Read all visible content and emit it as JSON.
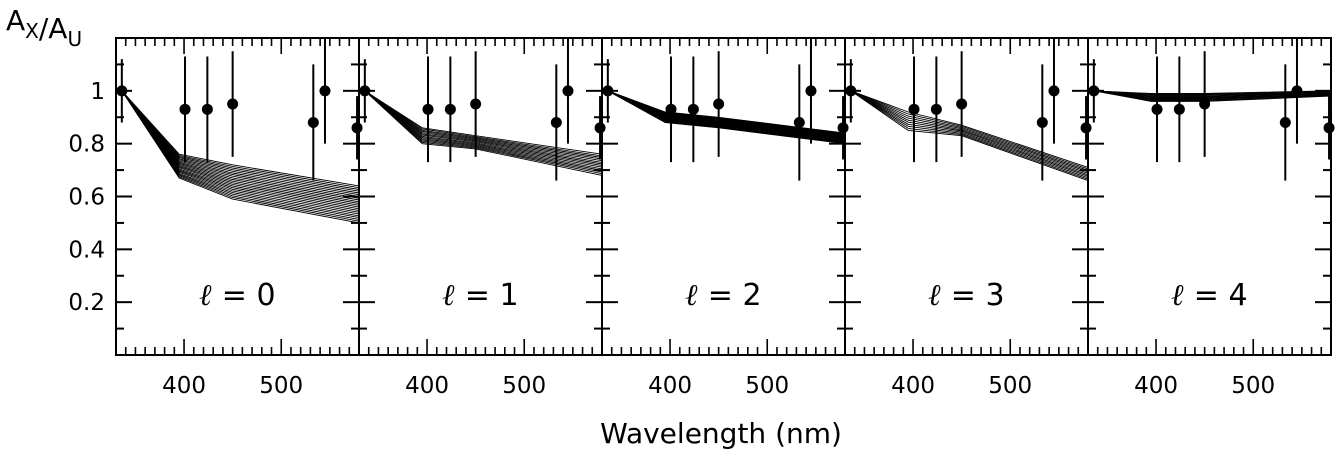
{
  "chart_data": {
    "type": "line",
    "ylabel": "A_X/A_U",
    "xlabel": "Wavelength (nm)",
    "ylim": [
      0,
      1.2
    ],
    "xlim": [
      330,
      580
    ],
    "yticks": [
      0.2,
      0.4,
      0.6,
      0.8,
      1
    ],
    "yticklabels": [
      "0.2",
      "0.4",
      "0.6",
      "0.8",
      "1"
    ],
    "xticks": [
      400,
      500
    ],
    "xticklabels": [
      "400",
      "500"
    ],
    "grid": false,
    "observations": {
      "wavelength_nm": [
        336,
        401,
        424,
        450,
        533,
        545,
        578
      ],
      "ratio": [
        1.0,
        0.93,
        0.93,
        0.95,
        0.88,
        1.0,
        0.86
      ],
      "error": [
        0.12,
        0.2,
        0.2,
        0.2,
        0.22,
        0.2,
        0.12
      ]
    },
    "panels": [
      {
        "label": "ℓ = 0",
        "degree": "0",
        "model_wavelength_nm": [
          336,
          395,
          450,
          580
        ],
        "model_curves": {
          "lower": [
            1.0,
            0.67,
            0.59,
            0.5
          ],
          "upper": [
            1.0,
            0.76,
            0.72,
            0.64
          ],
          "count": 22
        }
      },
      {
        "label": "ℓ = 1",
        "degree": "1",
        "model_wavelength_nm": [
          336,
          395,
          450,
          580
        ],
        "model_curves": {
          "lower": [
            1.0,
            0.8,
            0.78,
            0.68
          ],
          "upper": [
            1.0,
            0.86,
            0.83,
            0.76
          ],
          "count": 14
        }
      },
      {
        "label": "ℓ = 2",
        "degree": "2",
        "model_wavelength_nm": [
          336,
          395,
          450,
          580
        ],
        "model_curves": {
          "lower": [
            1.0,
            0.88,
            0.86,
            0.8
          ],
          "upper": [
            1.0,
            0.92,
            0.9,
            0.84
          ],
          "count": 22
        }
      },
      {
        "label": "ℓ = 3",
        "degree": "3",
        "model_wavelength_nm": [
          336,
          395,
          450,
          580
        ],
        "model_curves": {
          "lower": [
            1.0,
            0.85,
            0.83,
            0.66
          ],
          "upper": [
            1.0,
            0.92,
            0.87,
            0.71
          ],
          "count": 10
        }
      },
      {
        "label": "ℓ = 4",
        "degree": "4",
        "model_wavelength_nm": [
          336,
          395,
          450,
          580
        ],
        "model_curves": {
          "lower": [
            1.0,
            0.96,
            0.96,
            0.98
          ],
          "upper": [
            1.0,
            0.99,
            0.99,
            1.0
          ],
          "count": 12
        }
      }
    ]
  }
}
